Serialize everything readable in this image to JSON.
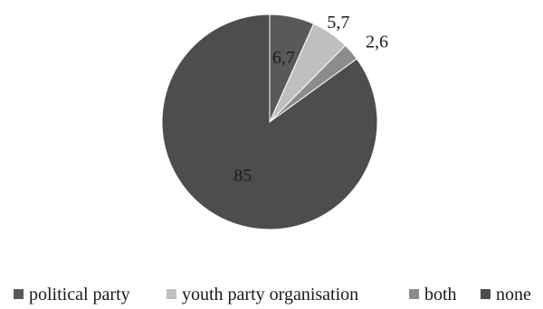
{
  "chart_data": {
    "type": "pie",
    "title": "",
    "categories": [
      "political party",
      "youth party organisation",
      "both",
      "none"
    ],
    "values": [
      6.7,
      5.7,
      2.6,
      85
    ],
    "data_labels": [
      "6,7",
      "5,7",
      "2,6",
      "85"
    ],
    "colors": [
      "#595959",
      "#bfbfbf",
      "#8c8c8c",
      "#4d4d4d"
    ],
    "start_angle_deg": 0,
    "direction": "clockwise",
    "legend_position": "bottom"
  },
  "legend": {
    "items": [
      {
        "label": "political party",
        "color": "#595959"
      },
      {
        "label": "youth party organisation",
        "color": "#bfbfbf"
      },
      {
        "label": "both",
        "color": "#8c8c8c"
      },
      {
        "label": "none",
        "color": "#4d4d4d"
      }
    ]
  }
}
